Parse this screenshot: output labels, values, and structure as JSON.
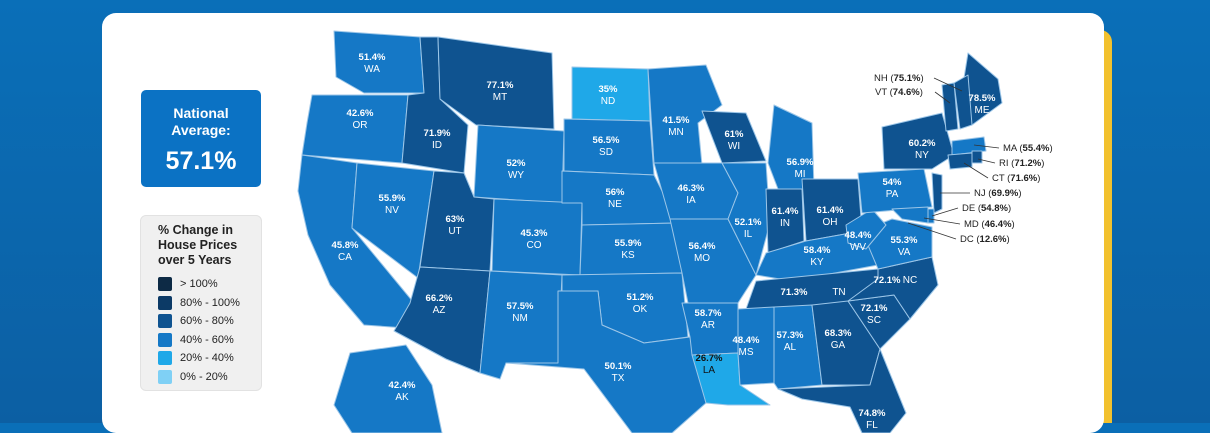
{
  "national_average": {
    "label_line1": "National",
    "label_line2": "Average:",
    "value": "57.1%"
  },
  "legend": {
    "title_lines": [
      "% Change in",
      "House Prices",
      "over 5 Years"
    ],
    "items": [
      {
        "label": "> 100%",
        "color": "#0d2a45"
      },
      {
        "label": "80% - 100%",
        "color": "#0c3a66"
      },
      {
        "label": "60% - 80%",
        "color": "#0f5390"
      },
      {
        "label": "40% - 60%",
        "color": "#1578c6"
      },
      {
        "label": "20% - 40%",
        "color": "#1fa8e8"
      },
      {
        "label": "0% - 20%",
        "color": "#7fd0f5"
      }
    ]
  },
  "states": [
    {
      "abbr": "WA",
      "value": "51.4%",
      "color": "#1578c6"
    },
    {
      "abbr": "OR",
      "value": "42.6%",
      "color": "#1578c6"
    },
    {
      "abbr": "CA",
      "value": "45.8%",
      "color": "#1578c6"
    },
    {
      "abbr": "NV",
      "value": "55.9%",
      "color": "#1578c6"
    },
    {
      "abbr": "ID",
      "value": "71.9%",
      "color": "#0f5390"
    },
    {
      "abbr": "MT",
      "value": "77.1%",
      "color": "#0f5390"
    },
    {
      "abbr": "WY",
      "value": "52%",
      "color": "#1578c6"
    },
    {
      "abbr": "UT",
      "value": "63%",
      "color": "#0f5390"
    },
    {
      "abbr": "AZ",
      "value": "66.2%",
      "color": "#0f5390"
    },
    {
      "abbr": "CO",
      "value": "45.3%",
      "color": "#1578c6"
    },
    {
      "abbr": "NM",
      "value": "57.5%",
      "color": "#1578c6"
    },
    {
      "abbr": "ND",
      "value": "35%",
      "color": "#1fa8e8"
    },
    {
      "abbr": "SD",
      "value": "56.5%",
      "color": "#1578c6"
    },
    {
      "abbr": "NE",
      "value": "56%",
      "color": "#1578c6"
    },
    {
      "abbr": "KS",
      "value": "55.9%",
      "color": "#1578c6"
    },
    {
      "abbr": "OK",
      "value": "51.2%",
      "color": "#1578c6"
    },
    {
      "abbr": "TX",
      "value": "50.1%",
      "color": "#1578c6"
    },
    {
      "abbr": "MN",
      "value": "41.5%",
      "color": "#1578c6"
    },
    {
      "abbr": "IA",
      "value": "46.3%",
      "color": "#1578c6"
    },
    {
      "abbr": "MO",
      "value": "56.4%",
      "color": "#1578c6"
    },
    {
      "abbr": "AR",
      "value": "58.7%",
      "color": "#1578c6"
    },
    {
      "abbr": "LA",
      "value": "26.7%",
      "color": "#1fa8e8"
    },
    {
      "abbr": "WI",
      "value": "61%",
      "color": "#0f5390"
    },
    {
      "abbr": "IL",
      "value": "52.1%",
      "color": "#1578c6"
    },
    {
      "abbr": "MI",
      "value": "56.9%",
      "color": "#1578c6"
    },
    {
      "abbr": "IN",
      "value": "61.4%",
      "color": "#0f5390"
    },
    {
      "abbr": "OH",
      "value": "61.4%",
      "color": "#0f5390"
    },
    {
      "abbr": "KY",
      "value": "58.4%",
      "color": "#1578c6"
    },
    {
      "abbr": "TN",
      "value": "71.3%",
      "color": "#0f5390"
    },
    {
      "abbr": "MS",
      "value": "48.4%",
      "color": "#1578c6"
    },
    {
      "abbr": "AL",
      "value": "57.3%",
      "color": "#1578c6"
    },
    {
      "abbr": "GA",
      "value": "68.3%",
      "color": "#0f5390"
    },
    {
      "abbr": "FL",
      "value": "74.8%",
      "color": "#0f5390"
    },
    {
      "abbr": "SC",
      "value": "72.1%",
      "color": "#0f5390"
    },
    {
      "abbr": "NC",
      "value": "72.1%",
      "color": "#0f5390"
    },
    {
      "abbr": "VA",
      "value": "55.3%",
      "color": "#1578c6"
    },
    {
      "abbr": "WV",
      "value": "48.4%",
      "color": "#1578c6"
    },
    {
      "abbr": "PA",
      "value": "54%",
      "color": "#1578c6"
    },
    {
      "abbr": "NY",
      "value": "60.2%",
      "color": "#0f5390"
    },
    {
      "abbr": "ME",
      "value": "78.5%",
      "color": "#0f5390"
    },
    {
      "abbr": "AK",
      "value": "42.4%",
      "color": "#1578c6"
    }
  ],
  "callouts": [
    {
      "abbr": "NH",
      "value": "75.1%"
    },
    {
      "abbr": "VT",
      "value": "74.6%"
    },
    {
      "abbr": "MA",
      "value": "55.4%"
    },
    {
      "abbr": "RI",
      "value": "71.2%"
    },
    {
      "abbr": "CT",
      "value": "71.6%"
    },
    {
      "abbr": "NJ",
      "value": "69.9%"
    },
    {
      "abbr": "DE",
      "value": "54.8%"
    },
    {
      "abbr": "MD",
      "value": "46.4%"
    },
    {
      "abbr": "DC",
      "value": "12.6%"
    }
  ]
}
